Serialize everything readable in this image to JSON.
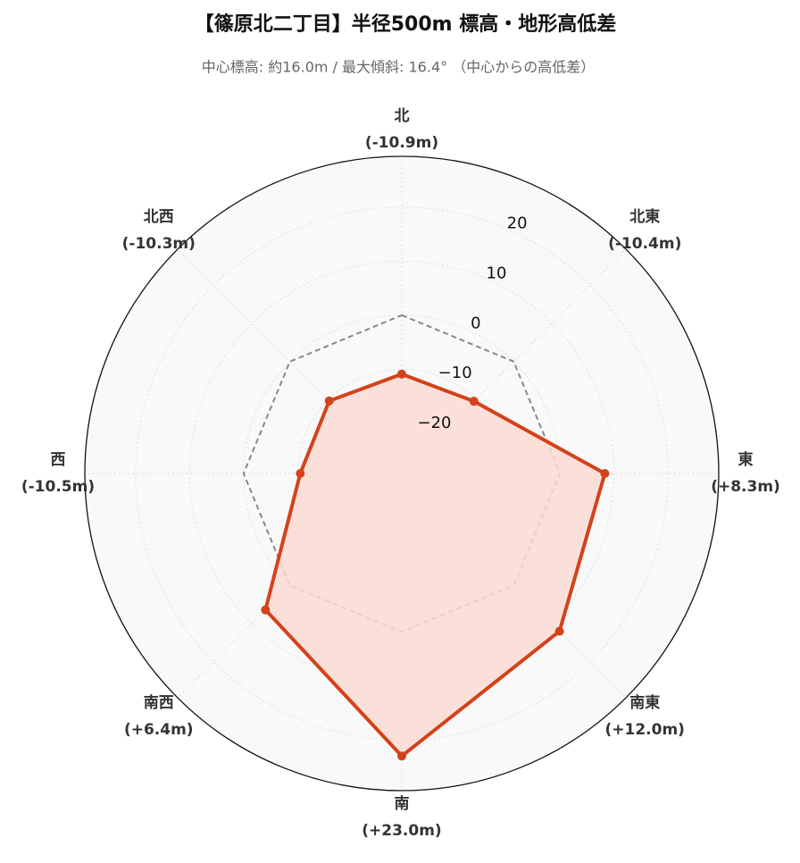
{
  "chart_data": {
    "type": "radar",
    "title": "【篠原北二丁目】半径500m 標高・地形高低差",
    "subtitle": "中心標高: 約16.0m / 最大傾斜: 16.4° （中心からの高低差）",
    "categories": [
      "北",
      "北東",
      "東",
      "南東",
      "南",
      "南西",
      "西",
      "北西"
    ],
    "series": [
      {
        "color": "#d4421a",
        "fill": "#fcdcd3",
        "values": [
          -10.9,
          -10.4,
          8.3,
          12.0,
          23.0,
          6.4,
          -10.5,
          -10.3
        ],
        "value_labels": [
          "(-10.9m)",
          "(-10.4m)",
          "(+8.3m)",
          "(+12.0m)",
          "(+23.0m)",
          "(+6.4m)",
          "(-10.5m)",
          "(-10.3m)"
        ]
      }
    ],
    "reference_value": 0,
    "reference_color": "#888888",
    "ylim": [
      -29.3,
      29.4
    ],
    "yticks": [
      {
        "value": -20,
        "label": "−20"
      },
      {
        "value": -10,
        "label": "−10"
      },
      0,
      10,
      20
    ],
    "grid": true
  }
}
